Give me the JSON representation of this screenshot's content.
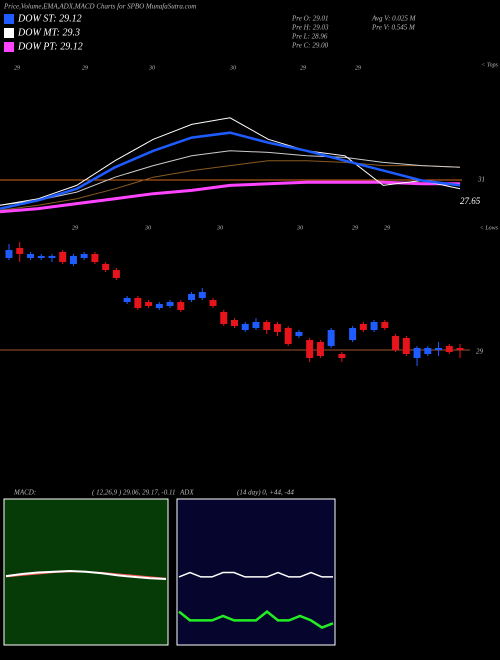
{
  "header": {
    "title": "Price,Volume,EMA,ADX,MACD Charts for SPBO MunafaSutra.com",
    "legend": [
      {
        "label": "DOW ST: 29.12",
        "color": "#1e5cff"
      },
      {
        "label": "DOW MT: 29.3",
        "color": "#ffffff"
      },
      {
        "label": "DOW PT: 29.12",
        "color": "#ff44ff"
      }
    ],
    "stats": [
      "Pre O: 29.01",
      "Pre H: 29.03",
      "Pre L: 28.96",
      "Pre C: 29.00",
      "Avg V: 0.025 M",
      "Pre V: 0.545 M"
    ]
  },
  "chart_data": [
    {
      "type": "line",
      "corner_label": "< Tops",
      "x_labels": [
        "29",
        "29",
        "30",
        "30",
        "29",
        "29"
      ],
      "right_labels": [
        "31",
        "27.65"
      ],
      "ylim": [
        0,
        100
      ],
      "series": [
        {
          "color": "#8a5a20",
          "width": 1,
          "values": [
            12,
            15,
            19,
            25,
            32,
            36,
            39,
            42,
            42,
            41,
            39,
            39,
            38
          ]
        },
        {
          "color": "#cccccc",
          "width": 1,
          "values": [
            15,
            18,
            23,
            32,
            39,
            45,
            48,
            47,
            45,
            44,
            41,
            39,
            38
          ]
        },
        {
          "color": "#ff44ff",
          "width": 3,
          "values": [
            11,
            13,
            16,
            19,
            22,
            24,
            27,
            28,
            29,
            29,
            29,
            28,
            28
          ]
        },
        {
          "color": "#ffffff",
          "width": 1,
          "values": [
            15,
            19,
            27,
            42,
            55,
            64,
            68,
            55,
            48,
            45,
            27,
            30,
            25
          ]
        },
        {
          "color": "#1e5cff",
          "width": 2.5,
          "values": [
            13,
            18,
            25,
            38,
            48,
            56,
            59,
            53,
            48,
            42,
            36,
            30,
            27
          ]
        }
      ]
    },
    {
      "type": "candlestick",
      "corner_label": "< Lows",
      "x_labels": [
        "29",
        "30",
        "30",
        "30",
        "29",
        "29"
      ],
      "ylim": [
        28.75,
        29.6
      ],
      "yticks": [
        29
      ],
      "up_color": "#1e5cff",
      "down_color": "#e8141c",
      "open": [
        29.46,
        29.51,
        29.46,
        29.46,
        29.46,
        29.49,
        29.43,
        29.46,
        29.48,
        29.43,
        29.4,
        29.24,
        29.26,
        29.24,
        29.21,
        29.22,
        29.24,
        29.25,
        29.26,
        29.25,
        29.19,
        29.15,
        29.1,
        29.11,
        29.14,
        29.13,
        29.11,
        29.07,
        29.05,
        29.04,
        29.02,
        28.98,
        29.05,
        29.13,
        29.1,
        29.14,
        29.07,
        29.06,
        28.96,
        28.98,
        29.0,
        29.02,
        29.01
      ],
      "high": [
        29.53,
        29.54,
        29.49,
        29.48,
        29.48,
        29.5,
        29.48,
        29.49,
        29.49,
        29.44,
        29.41,
        29.27,
        29.27,
        29.25,
        29.24,
        29.25,
        29.25,
        29.29,
        29.31,
        29.26,
        29.2,
        29.16,
        29.14,
        29.16,
        29.15,
        29.14,
        29.12,
        29.1,
        29.06,
        29.05,
        29.11,
        28.99,
        29.12,
        29.14,
        29.15,
        29.15,
        29.08,
        29.07,
        29.02,
        29.02,
        29.04,
        29.03,
        29.03
      ],
      "low": [
        29.45,
        29.44,
        29.45,
        29.45,
        29.44,
        29.43,
        29.42,
        29.45,
        29.43,
        29.39,
        29.35,
        29.23,
        29.2,
        29.21,
        29.2,
        29.21,
        29.19,
        29.24,
        29.25,
        29.21,
        29.12,
        29.11,
        29.09,
        29.1,
        29.08,
        29.07,
        29.02,
        29.06,
        28.94,
        28.96,
        29.01,
        28.94,
        29.04,
        29.09,
        29.09,
        29.1,
        28.99,
        28.97,
        28.92,
        28.97,
        28.97,
        28.98,
        28.96
      ],
      "close": [
        29.5,
        29.48,
        29.48,
        29.47,
        29.47,
        29.44,
        29.47,
        29.48,
        29.44,
        29.4,
        29.36,
        29.26,
        29.21,
        29.22,
        29.23,
        29.24,
        29.2,
        29.28,
        29.29,
        29.22,
        29.13,
        29.12,
        29.13,
        29.14,
        29.1,
        29.09,
        29.03,
        29.09,
        28.96,
        28.97,
        29.1,
        28.96,
        29.11,
        29.1,
        29.14,
        29.11,
        29.0,
        28.98,
        29.01,
        29.01,
        29.01,
        28.99,
        29.0
      ]
    },
    {
      "type": "line",
      "title": "MACD:",
      "subtitle": "( 12,26,9 ) 29.06, 29.17, -0.11",
      "ylim": [
        -1,
        1
      ],
      "series": [
        {
          "color": "#ff5555",
          "width": 1,
          "values": [
            -0.06,
            -0.04,
            -0.02,
            0,
            0.01,
            0.01,
            0,
            -0.02,
            -0.04,
            -0.06,
            -0.08
          ]
        },
        {
          "color": "#ffffff",
          "width": 2,
          "values": [
            -0.05,
            -0.02,
            0,
            0.01,
            0.02,
            0.01,
            -0.01,
            -0.04,
            -0.06,
            -0.08,
            -0.09
          ]
        }
      ]
    },
    {
      "type": "line",
      "title": "ADX",
      "subtitle": "(14 day) 0, +44, -44",
      "ylim": [
        0,
        100
      ],
      "series": [
        {
          "color": "#ffffff",
          "width": 1.5,
          "values": [
            47,
            50,
            47,
            47,
            50,
            50,
            47,
            47,
            47,
            50,
            47,
            47,
            50,
            47,
            47
          ]
        },
        {
          "color": "#22ee22",
          "width": 2.5,
          "values": [
            23,
            17,
            17,
            17,
            20,
            17,
            17,
            17,
            23,
            17,
            17,
            20,
            17,
            12,
            15
          ]
        }
      ]
    }
  ]
}
